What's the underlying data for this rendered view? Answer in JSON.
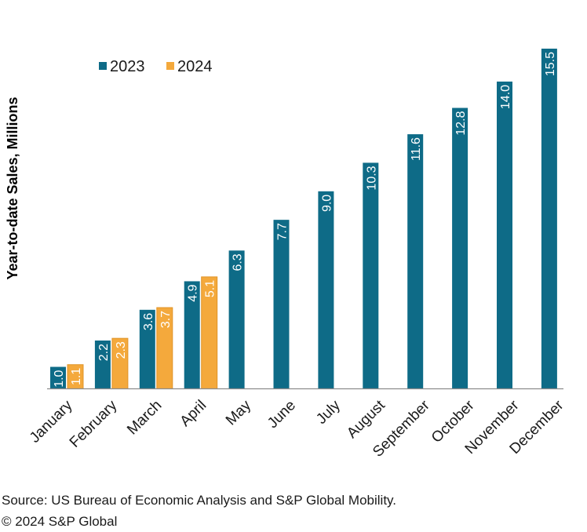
{
  "chart_data": {
    "type": "bar",
    "title": "",
    "xlabel": "",
    "ylabel": "Year-to-date Sales, Millions",
    "categories": [
      "January",
      "February",
      "March",
      "April",
      "May",
      "June",
      "July",
      "August",
      "September",
      "October",
      "November",
      "December"
    ],
    "series": [
      {
        "name": "2023",
        "color": "#0e6b87",
        "values": [
          1.0,
          2.2,
          3.6,
          4.9,
          6.3,
          7.7,
          9.0,
          10.3,
          11.6,
          12.8,
          14.0,
          15.5
        ],
        "labels": [
          "1.0",
          "2.2",
          "3.6",
          "4.9",
          "6.3",
          "7.7",
          "9.0",
          "10.3",
          "11.6",
          "12.8",
          "14.0",
          "15.5"
        ]
      },
      {
        "name": "2024",
        "color": "#f4a93c",
        "values": [
          1.1,
          2.3,
          3.7,
          5.1,
          null,
          null,
          null,
          null,
          null,
          null,
          null,
          null
        ],
        "labels": [
          "1.1",
          "2.3",
          "3.7",
          "5.1",
          null,
          null,
          null,
          null,
          null,
          null,
          null,
          null
        ]
      }
    ],
    "ylim": [
      0,
      15.5
    ],
    "grid": false,
    "legend": "top-left",
    "data_label_color": "#ffffff"
  },
  "footer": {
    "source": "Source: US Bureau of Economic Analysis and S&P Global Mobility.",
    "copyright": "© 2024 S&P Global"
  }
}
